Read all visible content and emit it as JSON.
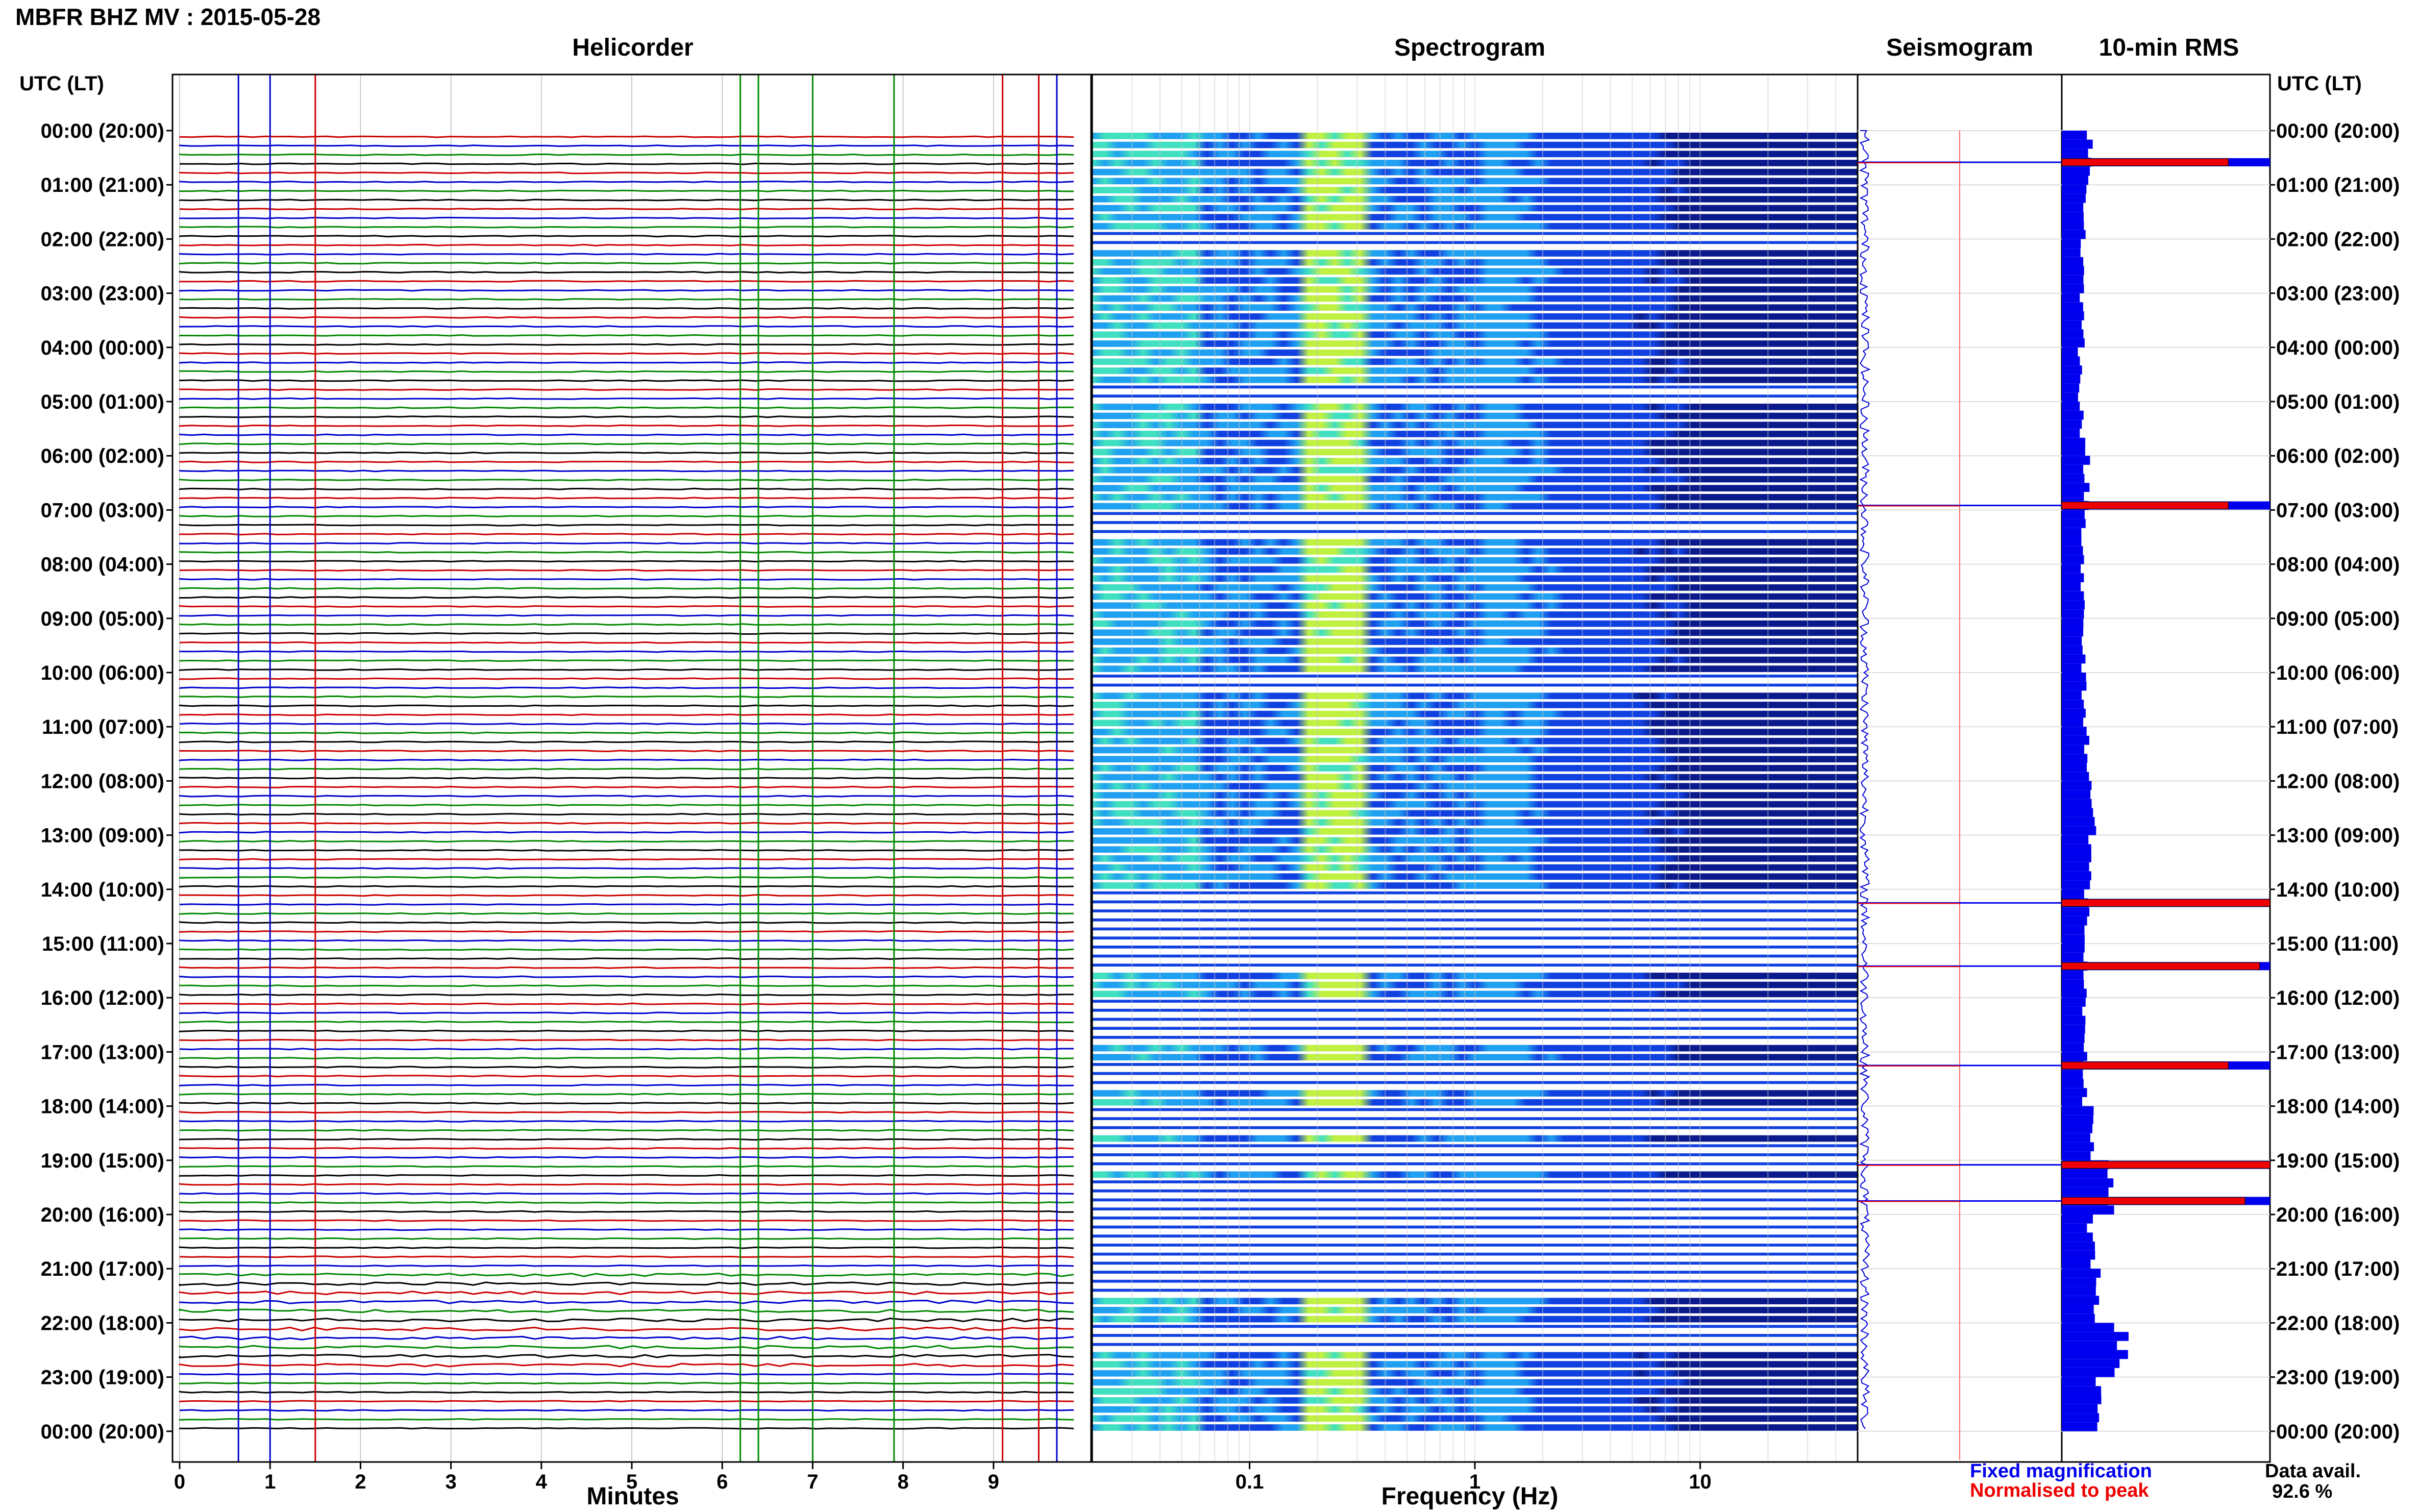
{
  "header": {
    "title": "MBFR BHZ MV : 2015-05-28",
    "time_axis_label_left": "UTC (LT)",
    "time_axis_label_right": "UTC (LT)"
  },
  "legend": {
    "fixed_magnification": "Fixed magnification",
    "fixed_color": "#0000ee",
    "normalised_to_peak": "Normalised to peak",
    "normalised_color": "#ee0000",
    "data_availability_label": "Data avail.",
    "data_availability_value": "92.6 %"
  },
  "chart_data": [
    {
      "type": "heatmap",
      "title": "Helicorder",
      "xlabel": "Minutes",
      "ylabel": "UTC (LT)",
      "x_ticks": [
        "0",
        "1",
        "2",
        "3",
        "4",
        "5",
        "6",
        "7",
        "8",
        "9"
      ],
      "xlim": [
        0,
        10
      ],
      "y_ticks": [
        "00:00 (20:00)",
        "01:00 (21:00)",
        "02:00 (22:00)",
        "03:00 (23:00)",
        "04:00 (00:00)",
        "05:00 (01:00)",
        "06:00 (02:00)",
        "07:00 (03:00)",
        "08:00 (04:00)",
        "09:00 (05:00)",
        "10:00 (06:00)",
        "11:00 (07:00)",
        "12:00 (08:00)",
        "13:00 (09:00)",
        "14:00 (10:00)",
        "15:00 (11:00)",
        "16:00 (12:00)",
        "17:00 (13:00)",
        "18:00 (14:00)",
        "19:00 (15:00)",
        "20:00 (16:00)",
        "21:00 (17:00)",
        "22:00 (18:00)",
        "23:00 (19:00)",
        "00:00 (20:00)"
      ],
      "trace_colors": [
        "#cc0000",
        "#0000cc",
        "#008800",
        "#000000"
      ],
      "traces_per_hour": 6
    },
    {
      "type": "heatmap",
      "title": "Spectrogram",
      "xlabel": "Frequency (Hz)",
      "x_scale": "log",
      "xlim": [
        0.02,
        50
      ],
      "x_ticks": [
        "0.1",
        "1",
        "10"
      ],
      "x_tick_values": [
        0.1,
        1,
        10
      ],
      "peak_band_hz": [
        0.2,
        0.3
      ],
      "colormap": [
        "#0a1a8c",
        "#1040e0",
        "#20a0f0",
        "#40e0c0",
        "#c0f040"
      ]
    },
    {
      "type": "line",
      "title": "Seismogram",
      "grid": true
    },
    {
      "type": "bar",
      "title": "10-min RMS",
      "orientation": "horizontal",
      "fixed_color": "#0000ee",
      "normalised_color": "#ee0000",
      "hours": [
        0,
        1,
        2,
        3,
        4,
        5,
        6,
        7,
        8,
        9,
        10,
        11,
        12,
        13,
        14,
        15,
        16,
        17,
        18,
        19,
        20,
        21,
        22,
        23
      ],
      "rms_fixed": [
        0.14,
        0.11,
        0.1,
        0.1,
        0.09,
        0.1,
        0.12,
        0.11,
        0.1,
        0.1,
        0.11,
        0.12,
        0.16,
        0.13,
        0.12,
        0.11,
        0.1,
        0.11,
        0.15,
        0.22,
        0.14,
        0.18,
        0.28,
        0.18
      ],
      "event_spikes": [
        {
          "time": "00:35",
          "fixed": 1.0,
          "normalised": 0.8
        },
        {
          "time": "06:55",
          "fixed": 1.0,
          "normalised": 0.8
        },
        {
          "time": "14:15",
          "fixed": 1.0,
          "normalised": 1.0
        },
        {
          "time": "15:25",
          "fixed": 1.0,
          "normalised": 0.95
        },
        {
          "time": "17:15",
          "fixed": 1.0,
          "normalised": 0.8
        },
        {
          "time": "19:05",
          "fixed": 1.0,
          "normalised": 1.0
        },
        {
          "time": "19:45",
          "fixed": 1.0,
          "normalised": 0.88
        }
      ]
    }
  ]
}
